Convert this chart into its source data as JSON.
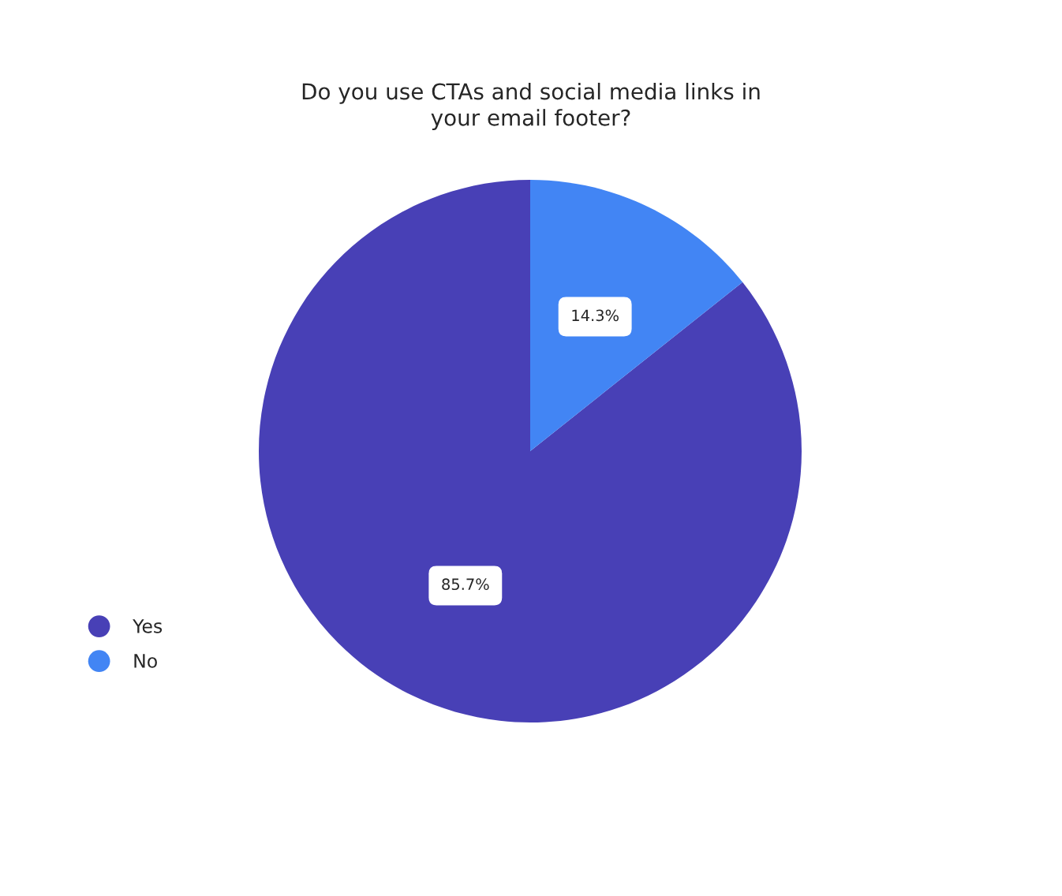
{
  "chart_data": {
    "type": "pie",
    "title": "Do you use CTAs and social media links in\nyour email footer?",
    "categories": [
      "Yes",
      "No"
    ],
    "values": [
      85.7,
      14.3
    ],
    "colors": [
      "#4840b6",
      "#4285f4"
    ],
    "value_labels": [
      "85.7%",
      "14.3%"
    ],
    "legend": "left"
  }
}
